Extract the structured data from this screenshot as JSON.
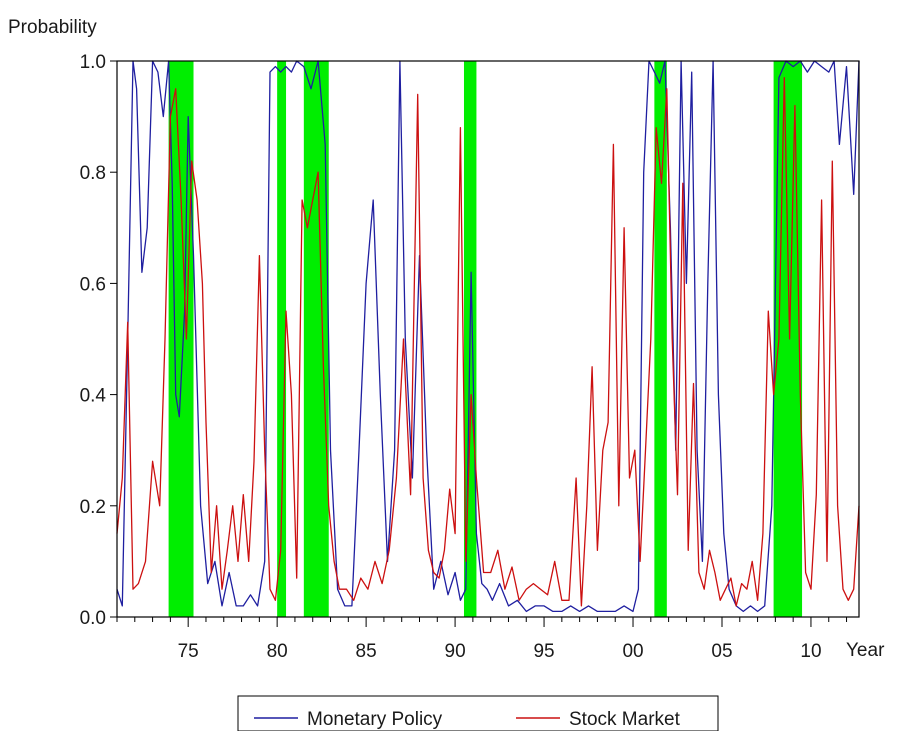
{
  "chart_data": {
    "type": "line",
    "ylabel": "Probability",
    "xlabel": "Year",
    "xlim": [
      1971.0,
      2012.7
    ],
    "ylim": [
      0,
      1
    ],
    "x_ticks": [
      1975,
      1980,
      1985,
      1990,
      1995,
      2000,
      2005,
      2010
    ],
    "x_tick_labels": [
      "75",
      "80",
      "85",
      "90",
      "95",
      "00",
      "05",
      "10"
    ],
    "y_ticks": [
      0,
      0.2,
      0.4,
      0.6,
      0.8,
      1.0
    ],
    "y_tick_labels": [
      "0.0",
      "0.2",
      "0.4",
      "0.6",
      "0.8",
      "1.0"
    ],
    "grid": false,
    "legend_position": "bottom",
    "shaded_periods": {
      "color": "#00ee00",
      "ranges": [
        [
          1973.9,
          1975.3
        ],
        [
          1980.0,
          1980.5
        ],
        [
          1981.5,
          1982.9
        ],
        [
          1990.5,
          1991.2
        ],
        [
          2001.2,
          2001.9
        ],
        [
          2007.9,
          2009.5
        ]
      ]
    },
    "series": [
      {
        "name": "Monetary Policy",
        "color": "#1f1fa0",
        "x": [
          1971.0,
          1971.3,
          1971.6,
          1971.9,
          1972.1,
          1972.4,
          1972.7,
          1973.0,
          1973.3,
          1973.6,
          1973.9,
          1974.1,
          1974.3,
          1974.5,
          1974.8,
          1975.0,
          1975.3,
          1975.7,
          1976.1,
          1976.5,
          1976.9,
          1977.3,
          1977.7,
          1978.1,
          1978.5,
          1978.9,
          1979.3,
          1979.6,
          1979.9,
          1980.2,
          1980.5,
          1980.8,
          1981.1,
          1981.5,
          1981.9,
          1982.3,
          1982.7,
          1983.0,
          1983.4,
          1983.8,
          1984.2,
          1984.6,
          1985.0,
          1985.4,
          1985.8,
          1986.2,
          1986.6,
          1986.9,
          1987.2,
          1987.6,
          1988.0,
          1988.4,
          1988.8,
          1989.2,
          1989.6,
          1990.0,
          1990.3,
          1990.6,
          1990.9,
          1991.2,
          1991.5,
          1991.8,
          1992.1,
          1992.5,
          1993.0,
          1993.5,
          1994.0,
          1994.5,
          1995.0,
          1995.5,
          1996.0,
          1996.5,
          1997.0,
          1997.5,
          1998.0,
          1998.5,
          1999.0,
          1999.5,
          2000.0,
          2000.3,
          2000.6,
          2000.9,
          2001.2,
          2001.5,
          2001.8,
          2002.1,
          2002.4,
          2002.7,
          2003.0,
          2003.3,
          2003.6,
          2003.9,
          2004.2,
          2004.5,
          2004.8,
          2005.1,
          2005.4,
          2005.8,
          2006.2,
          2006.6,
          2007.0,
          2007.4,
          2007.8,
          2008.2,
          2008.6,
          2009.0,
          2009.4,
          2009.8,
          2010.2,
          2010.6,
          2011.0,
          2011.3,
          2011.6,
          2012.0,
          2012.4,
          2012.7
        ],
        "values": [
          0.05,
          0.02,
          0.5,
          1.0,
          0.95,
          0.62,
          0.7,
          1.0,
          0.98,
          0.9,
          1.0,
          0.78,
          0.4,
          0.36,
          0.55,
          0.9,
          0.65,
          0.2,
          0.06,
          0.1,
          0.02,
          0.08,
          0.02,
          0.02,
          0.04,
          0.02,
          0.1,
          0.98,
          0.99,
          0.98,
          0.99,
          0.98,
          1.0,
          0.99,
          0.95,
          1.0,
          0.85,
          0.3,
          0.05,
          0.02,
          0.02,
          0.3,
          0.6,
          0.75,
          0.4,
          0.1,
          0.3,
          1.0,
          0.5,
          0.25,
          0.65,
          0.3,
          0.05,
          0.1,
          0.04,
          0.08,
          0.03,
          0.05,
          0.62,
          0.15,
          0.06,
          0.05,
          0.03,
          0.06,
          0.02,
          0.03,
          0.01,
          0.02,
          0.02,
          0.01,
          0.01,
          0.02,
          0.01,
          0.02,
          0.01,
          0.01,
          0.01,
          0.02,
          0.01,
          0.05,
          0.8,
          1.0,
          0.98,
          0.96,
          1.0,
          0.7,
          0.3,
          1.0,
          0.6,
          0.98,
          0.3,
          0.1,
          0.6,
          1.0,
          0.4,
          0.15,
          0.05,
          0.02,
          0.01,
          0.02,
          0.01,
          0.02,
          0.2,
          0.97,
          1.0,
          0.99,
          1.0,
          0.98,
          1.0,
          0.99,
          0.98,
          1.0,
          0.85,
          0.99,
          0.76,
          1.0
        ]
      },
      {
        "name": "Stock Market",
        "color": "#cc1010",
        "x": [
          1971.0,
          1971.3,
          1971.6,
          1971.9,
          1972.2,
          1972.6,
          1973.0,
          1973.4,
          1973.7,
          1974.0,
          1974.3,
          1974.6,
          1974.9,
          1975.2,
          1975.5,
          1975.8,
          1976.0,
          1976.3,
          1976.6,
          1976.9,
          1977.2,
          1977.5,
          1977.8,
          1978.1,
          1978.4,
          1978.7,
          1979.0,
          1979.3,
          1979.6,
          1979.9,
          1980.2,
          1980.5,
          1980.8,
          1981.1,
          1981.4,
          1981.7,
          1982.0,
          1982.3,
          1982.6,
          1982.9,
          1983.2,
          1983.5,
          1983.9,
          1984.3,
          1984.7,
          1985.1,
          1985.5,
          1985.9,
          1986.3,
          1986.7,
          1987.1,
          1987.5,
          1987.9,
          1988.2,
          1988.5,
          1988.8,
          1989.1,
          1989.4,
          1989.7,
          1990.0,
          1990.3,
          1990.6,
          1990.9,
          1991.2,
          1991.6,
          1992.0,
          1992.4,
          1992.8,
          1993.2,
          1993.6,
          1994.0,
          1994.4,
          1994.8,
          1995.2,
          1995.6,
          1996.0,
          1996.4,
          1996.8,
          1997.1,
          1997.4,
          1997.7,
          1998.0,
          1998.3,
          1998.6,
          1998.9,
          1999.2,
          1999.5,
          1999.8,
          2000.1,
          2000.4,
          2000.7,
          2001.0,
          2001.3,
          2001.6,
          2001.9,
          2002.2,
          2002.5,
          2002.8,
          2003.1,
          2003.4,
          2003.7,
          2004.0,
          2004.3,
          2004.6,
          2004.9,
          2005.2,
          2005.5,
          2005.8,
          2006.1,
          2006.4,
          2006.7,
          2007.0,
          2007.3,
          2007.6,
          2007.9,
          2008.2,
          2008.5,
          2008.8,
          2009.1,
          2009.4,
          2009.7,
          2010.0,
          2010.3,
          2010.6,
          2010.9,
          2011.2,
          2011.5,
          2011.8,
          2012.1,
          2012.4,
          2012.7
        ],
        "values": [
          0.15,
          0.25,
          0.53,
          0.05,
          0.06,
          0.1,
          0.28,
          0.2,
          0.5,
          0.9,
          0.95,
          0.75,
          0.5,
          0.82,
          0.75,
          0.6,
          0.35,
          0.08,
          0.2,
          0.05,
          0.12,
          0.2,
          0.1,
          0.22,
          0.1,
          0.28,
          0.65,
          0.3,
          0.05,
          0.03,
          0.12,
          0.55,
          0.4,
          0.07,
          0.75,
          0.7,
          0.75,
          0.8,
          0.45,
          0.2,
          0.1,
          0.05,
          0.05,
          0.03,
          0.07,
          0.05,
          0.1,
          0.06,
          0.12,
          0.25,
          0.5,
          0.22,
          0.94,
          0.25,
          0.12,
          0.08,
          0.07,
          0.12,
          0.23,
          0.15,
          0.88,
          0.1,
          0.4,
          0.25,
          0.08,
          0.08,
          0.12,
          0.05,
          0.09,
          0.03,
          0.05,
          0.06,
          0.05,
          0.04,
          0.1,
          0.03,
          0.03,
          0.25,
          0.02,
          0.2,
          0.45,
          0.12,
          0.3,
          0.35,
          0.85,
          0.2,
          0.7,
          0.25,
          0.3,
          0.1,
          0.3,
          0.5,
          0.88,
          0.78,
          0.95,
          0.5,
          0.22,
          0.78,
          0.12,
          0.42,
          0.08,
          0.05,
          0.12,
          0.08,
          0.03,
          0.05,
          0.07,
          0.02,
          0.06,
          0.05,
          0.1,
          0.03,
          0.15,
          0.55,
          0.4,
          0.5,
          0.97,
          0.5,
          0.92,
          0.4,
          0.08,
          0.05,
          0.22,
          0.75,
          0.1,
          0.82,
          0.2,
          0.05,
          0.03,
          0.05,
          0.2
        ]
      }
    ]
  }
}
